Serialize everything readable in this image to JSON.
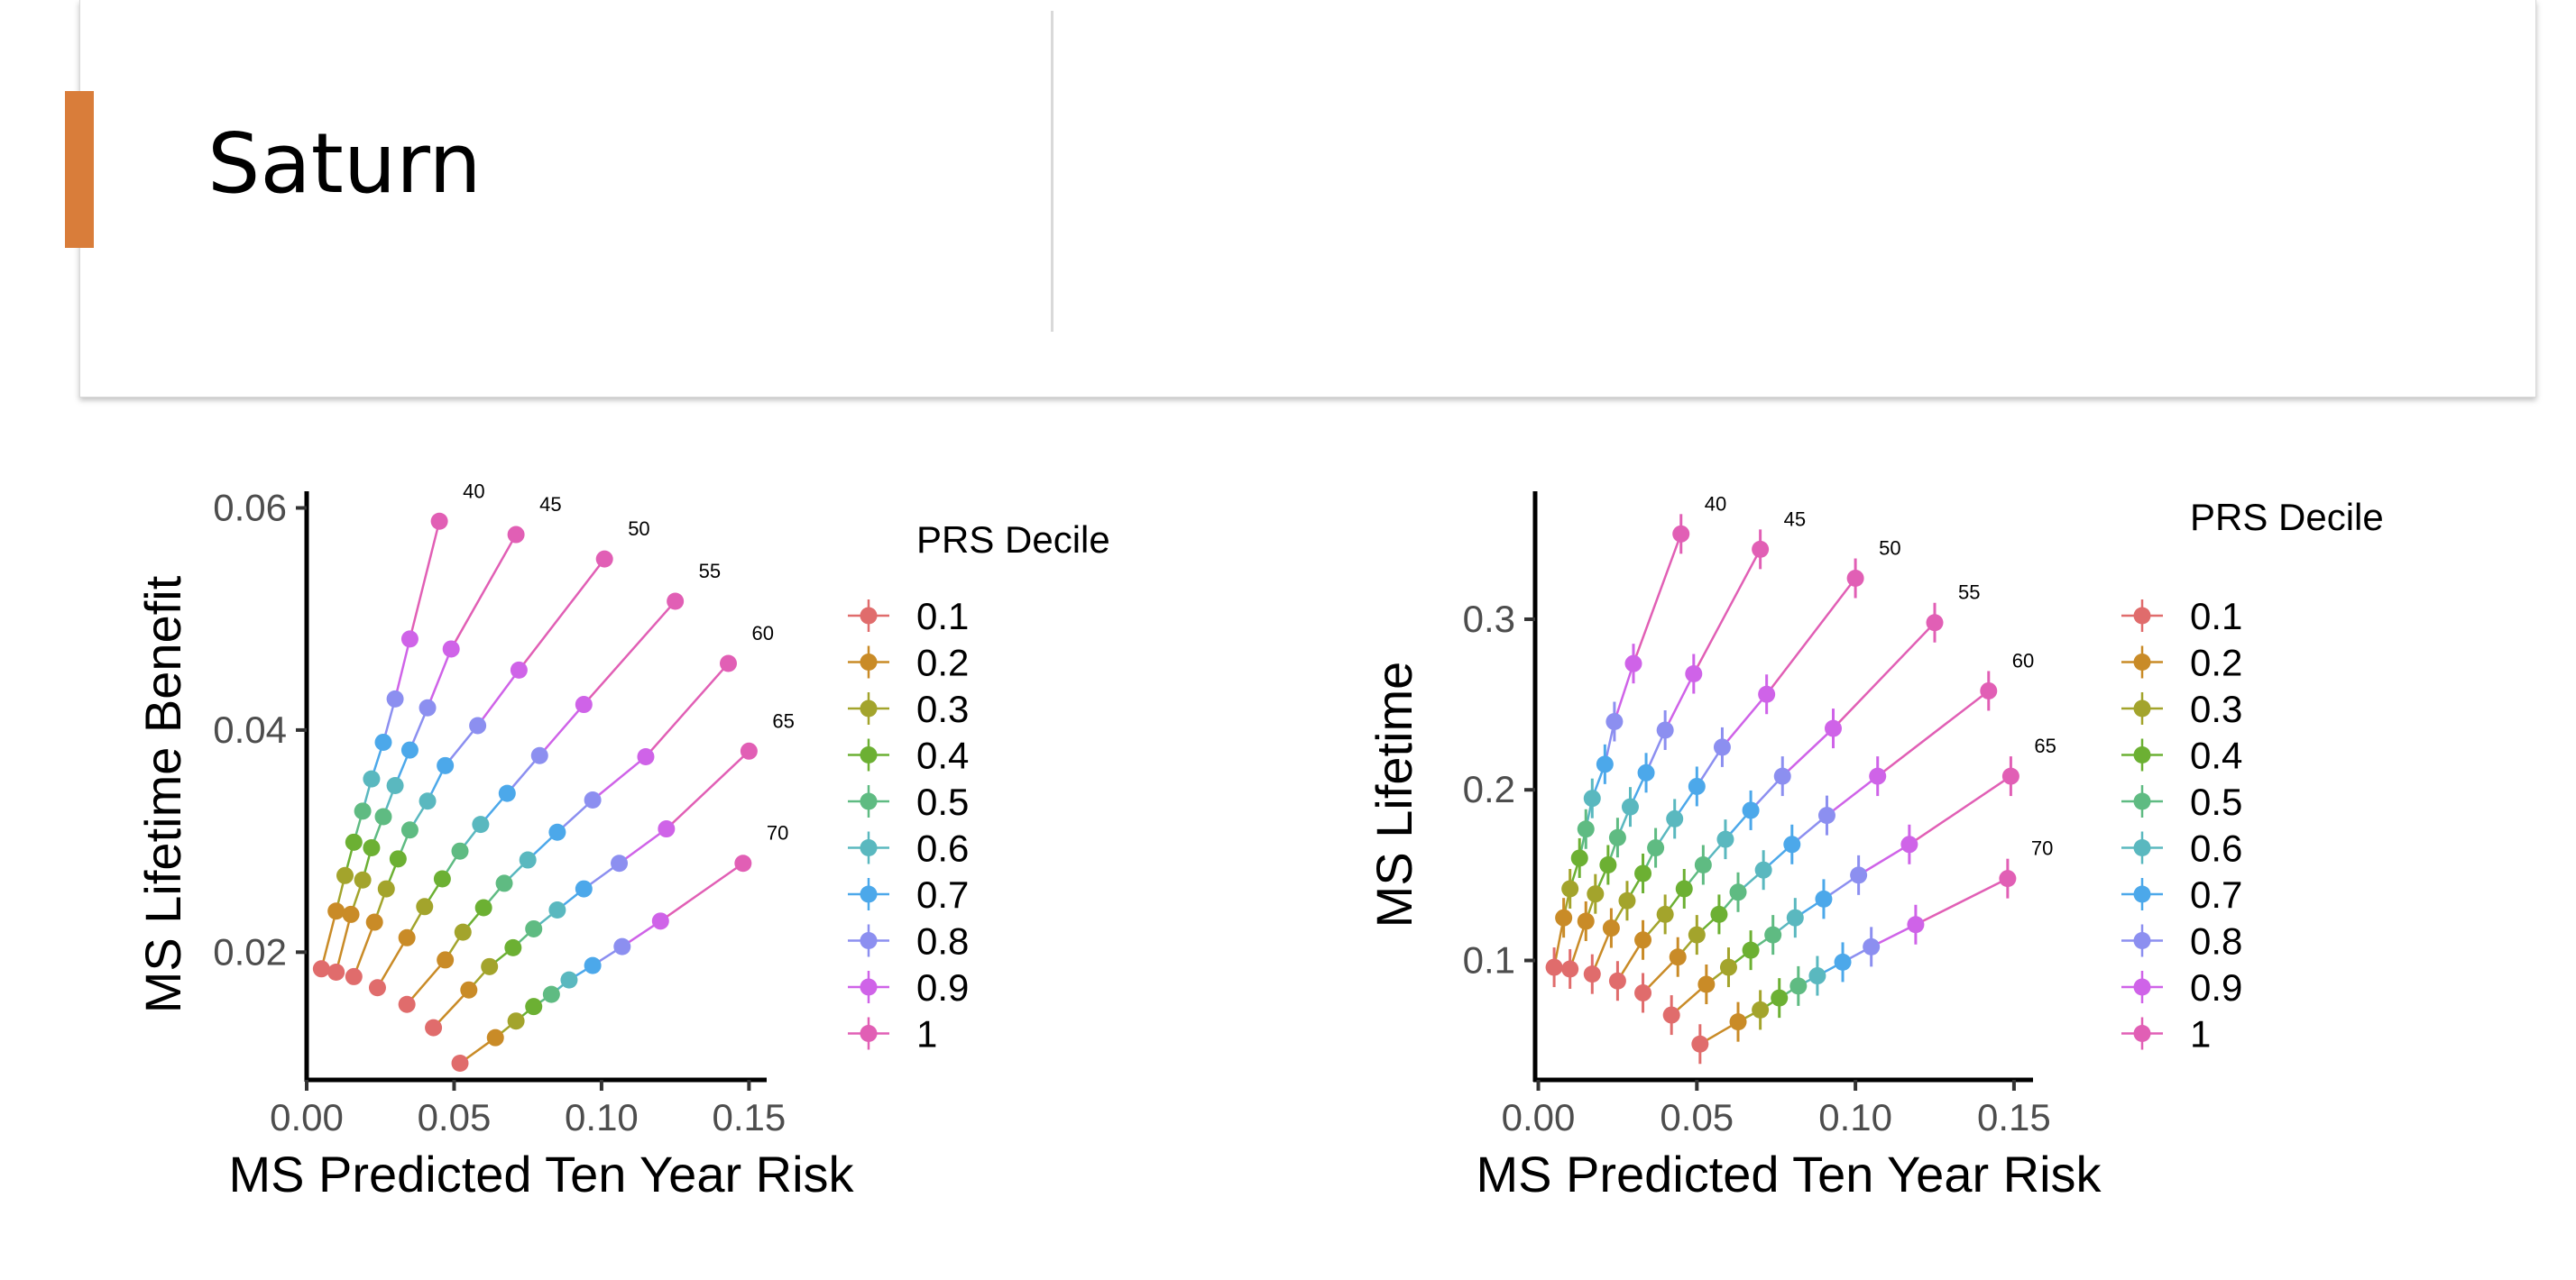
{
  "slide": {
    "title": "Saturn"
  },
  "chart_data": [
    {
      "type": "line",
      "ylabel": "MS Lifetime Benefit",
      "xlabel": "MS Predicted Ten Year Risk",
      "xlim": [
        0,
        0.156
      ],
      "ylim": [
        0.0085,
        0.0615
      ],
      "xticks": [
        "0.00",
        "0.05",
        "0.10",
        "0.15"
      ],
      "xtick_values": [
        0,
        0.05,
        0.1,
        0.15
      ],
      "yticks": [
        "0.02",
        "0.04",
        "0.06"
      ],
      "ytick_values": [
        0.02,
        0.04,
        0.06
      ],
      "grid": false,
      "legend": {
        "title": "PRS Decile",
        "position": "right",
        "entries": [
          "0.1",
          "0.2",
          "0.3",
          "0.4",
          "0.5",
          "0.6",
          "0.7",
          "0.8",
          "0.9",
          "1"
        ]
      },
      "series_colors": [
        "#E06C6C",
        "#C98B27",
        "#A3A42C",
        "#6CB033",
        "#5FBB82",
        "#5AB8BF",
        "#4CA8EA",
        "#8C8FF0",
        "#CF63E8",
        "#E15FB5"
      ],
      "age_groups": [
        {
          "label": "40",
          "x": [
            0.005,
            0.01,
            0.013,
            0.016,
            0.019,
            0.022,
            0.026,
            0.03,
            0.035,
            0.045
          ],
          "y": [
            0.0185,
            0.0237,
            0.0269,
            0.0299,
            0.0327,
            0.0356,
            0.0389,
            0.0428,
            0.0482,
            0.0588
          ]
        },
        {
          "label": "45",
          "x": [
            0.01,
            0.015,
            0.019,
            0.022,
            0.026,
            0.03,
            0.035,
            0.041,
            0.049,
            0.071
          ],
          "y": [
            0.0182,
            0.0234,
            0.0265,
            0.0294,
            0.0322,
            0.035,
            0.0382,
            0.042,
            0.0473,
            0.0576
          ]
        },
        {
          "label": "50",
          "x": [
            0.016,
            0.023,
            0.027,
            0.031,
            0.035,
            0.041,
            0.047,
            0.058,
            0.072,
            0.101
          ],
          "y": [
            0.0178,
            0.0227,
            0.0257,
            0.0284,
            0.031,
            0.0336,
            0.0368,
            0.0404,
            0.0454,
            0.0554
          ]
        },
        {
          "label": "55",
          "x": [
            0.024,
            0.034,
            0.04,
            0.046,
            0.052,
            0.059,
            0.068,
            0.079,
            0.094,
            0.125
          ],
          "y": [
            0.0168,
            0.0213,
            0.0241,
            0.0266,
            0.0291,
            0.0315,
            0.0343,
            0.0377,
            0.0423,
            0.0516
          ]
        },
        {
          "label": "60",
          "x": [
            0.034,
            0.047,
            0.053,
            0.06,
            0.067,
            0.075,
            0.085,
            0.097,
            0.115,
            0.143
          ],
          "y": [
            0.0153,
            0.0193,
            0.0218,
            0.024,
            0.0262,
            0.0283,
            0.0308,
            0.0337,
            0.0376,
            0.046
          ]
        },
        {
          "label": "65",
          "x": [
            0.043,
            0.055,
            0.062,
            0.07,
            0.077,
            0.085,
            0.094,
            0.106,
            0.122,
            0.15
          ],
          "y": [
            0.0132,
            0.0166,
            0.0187,
            0.0204,
            0.0221,
            0.0238,
            0.0257,
            0.028,
            0.0311,
            0.0381
          ]
        },
        {
          "label": "70",
          "x": [
            0.052,
            0.064,
            0.071,
            0.077,
            0.083,
            0.089,
            0.097,
            0.107,
            0.12,
            0.148
          ],
          "y": [
            0.01,
            0.0123,
            0.0138,
            0.0151,
            0.0162,
            0.0175,
            0.0188,
            0.0205,
            0.0228,
            0.028
          ]
        }
      ]
    },
    {
      "type": "line",
      "ylabel": "MS Lifetime",
      "xlabel": "MS Predicted Ten Year Risk",
      "xlim": [
        -0.001,
        0.156
      ],
      "ylim": [
        0.03,
        0.375
      ],
      "xticks": [
        "0.00",
        "0.05",
        "0.10",
        "0.15"
      ],
      "xtick_values": [
        0,
        0.05,
        0.1,
        0.15
      ],
      "yticks": [
        "0.1",
        "0.2",
        "0.3"
      ],
      "ytick_values": [
        0.1,
        0.2,
        0.3
      ],
      "grid": false,
      "legend": {
        "title": "PRS Decile",
        "position": "right",
        "entries": [
          "0.1",
          "0.2",
          "0.3",
          "0.4",
          "0.5",
          "0.6",
          "0.7",
          "0.8",
          "0.9",
          "1"
        ]
      },
      "series_colors": [
        "#E06C6C",
        "#C98B27",
        "#A3A42C",
        "#6CB033",
        "#5FBB82",
        "#5AB8BF",
        "#4CA8EA",
        "#8C8FF0",
        "#CF63E8",
        "#E15FB5"
      ],
      "age_groups": [
        {
          "label": "40",
          "x": [
            0.005,
            0.008,
            0.01,
            0.013,
            0.015,
            0.017,
            0.021,
            0.024,
            0.03,
            0.045
          ],
          "y": [
            0.096,
            0.125,
            0.142,
            0.16,
            0.177,
            0.195,
            0.215,
            0.24,
            0.274,
            0.35
          ]
        },
        {
          "label": "45",
          "x": [
            0.01,
            0.015,
            0.018,
            0.022,
            0.025,
            0.029,
            0.034,
            0.04,
            0.049,
            0.07
          ],
          "y": [
            0.095,
            0.123,
            0.139,
            0.156,
            0.172,
            0.19,
            0.21,
            0.235,
            0.268,
            0.341
          ]
        },
        {
          "label": "50",
          "x": [
            0.017,
            0.023,
            0.028,
            0.033,
            0.037,
            0.043,
            0.05,
            0.058,
            0.072,
            0.1
          ],
          "y": [
            0.092,
            0.119,
            0.135,
            0.151,
            0.166,
            0.183,
            0.202,
            0.225,
            0.256,
            0.324
          ]
        },
        {
          "label": "55",
          "x": [
            0.025,
            0.033,
            0.04,
            0.046,
            0.052,
            0.059,
            0.067,
            0.077,
            0.093,
            0.125
          ],
          "y": [
            0.088,
            0.112,
            0.127,
            0.142,
            0.156,
            0.171,
            0.188,
            0.208,
            0.236,
            0.298
          ]
        },
        {
          "label": "60",
          "x": [
            0.033,
            0.044,
            0.05,
            0.057,
            0.063,
            0.071,
            0.08,
            0.091,
            0.107,
            0.142
          ],
          "y": [
            0.081,
            0.102,
            0.115,
            0.127,
            0.14,
            0.153,
            0.168,
            0.185,
            0.208,
            0.258
          ]
        },
        {
          "label": "65",
          "x": [
            0.042,
            0.053,
            0.06,
            0.067,
            0.074,
            0.081,
            0.09,
            0.101,
            0.117,
            0.149
          ],
          "y": [
            0.068,
            0.086,
            0.096,
            0.106,
            0.115,
            0.125,
            0.136,
            0.15,
            0.168,
            0.208
          ]
        },
        {
          "label": "70",
          "x": [
            0.051,
            0.063,
            0.07,
            0.076,
            0.082,
            0.088,
            0.096,
            0.105,
            0.119,
            0.148
          ],
          "y": [
            0.051,
            0.064,
            0.071,
            0.078,
            0.085,
            0.091,
            0.099,
            0.108,
            0.121,
            0.148
          ]
        }
      ]
    }
  ]
}
